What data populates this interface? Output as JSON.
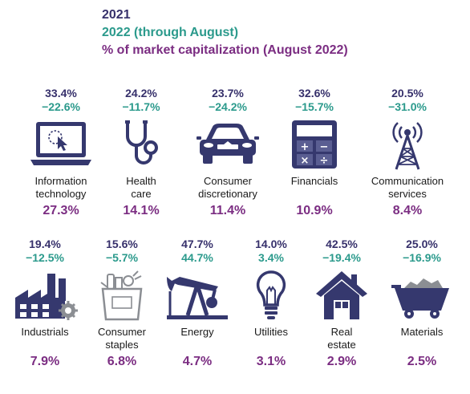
{
  "legend": {
    "year_2021": "2021",
    "year_2022": "2022 (through August)",
    "market_cap": "% of market capitalization (August 2022)"
  },
  "colors": {
    "navy": "#36306b",
    "teal": "#2b9a8c",
    "purple": "#7b2d82",
    "icon": "#35386e"
  },
  "sectors": [
    {
      "name_lines": [
        "Information",
        "technology"
      ],
      "r2021": "33.4%",
      "r2022": "−22.6%",
      "cap": "27.3%",
      "icon": "laptop-icon"
    },
    {
      "name_lines": [
        "Health",
        "care"
      ],
      "r2021": "24.2%",
      "r2022": "−11.7%",
      "cap": "14.1%",
      "icon": "stethoscope-icon"
    },
    {
      "name_lines": [
        "Consumer",
        "discretionary"
      ],
      "r2021": "23.7%",
      "r2022": "−24.2%",
      "cap": "11.4%",
      "icon": "car-icon"
    },
    {
      "name_lines": [
        "Financials",
        ""
      ],
      "r2021": "32.6%",
      "r2022": "−15.7%",
      "cap": "10.9%",
      "icon": "calculator-icon"
    },
    {
      "name_lines": [
        "Communication",
        "services"
      ],
      "r2021": "20.5%",
      "r2022": "−31.0%",
      "cap": "8.4%",
      "icon": "antenna-tower-icon"
    },
    {
      "name_lines": [
        "Industrials",
        ""
      ],
      "r2021": "19.4%",
      "r2022": "−12.5%",
      "cap": "7.9%",
      "icon": "factory-icon"
    },
    {
      "name_lines": [
        "Consumer",
        "staples"
      ],
      "r2021": "15.6%",
      "r2022": "−5.7%",
      "cap": "6.8%",
      "icon": "grocery-bag-icon"
    },
    {
      "name_lines": [
        "Energy",
        ""
      ],
      "r2021": "47.7%",
      "r2022": "44.7%",
      "cap": "4.7%",
      "icon": "oil-pump-icon"
    },
    {
      "name_lines": [
        "Utilities",
        ""
      ],
      "r2021": "14.0%",
      "r2022": "3.4%",
      "cap": "3.1%",
      "icon": "light-bulb-icon"
    },
    {
      "name_lines": [
        "Real",
        "estate"
      ],
      "r2021": "42.5%",
      "r2022": "−19.4%",
      "cap": "2.9%",
      "icon": "house-icon"
    },
    {
      "name_lines": [
        "Materials",
        ""
      ],
      "r2021": "25.0%",
      "r2022": "−16.9%",
      "cap": "2.5%",
      "icon": "mine-cart-icon"
    }
  ]
}
